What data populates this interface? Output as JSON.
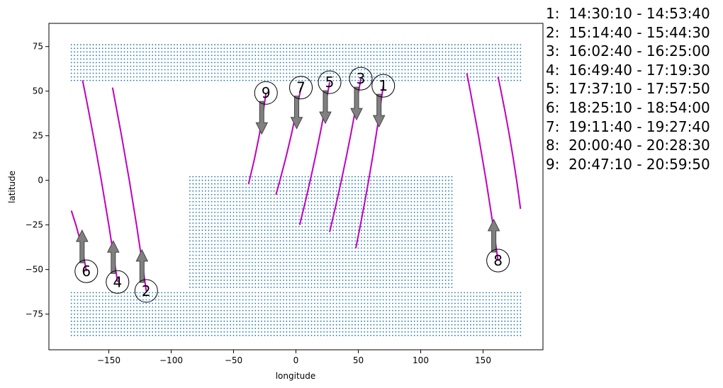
{
  "chart_data": {
    "type": "scatter",
    "xlabel": "longitude",
    "ylabel": "latitude",
    "xlim": [
      -198,
      198
    ],
    "ylim": [
      -95,
      88
    ],
    "xticks": [
      -150,
      -100,
      -50,
      0,
      50,
      100,
      150
    ],
    "yticks": [
      75,
      50,
      25,
      0,
      -25,
      -50,
      -75
    ],
    "grid": false,
    "colors": {
      "land_points": "#1f77b4",
      "tracks": "#c000c0",
      "arrows": "#808080"
    },
    "land_regions": [
      {
        "name": "north",
        "lon": [
          -180,
          180
        ],
        "lat": [
          56,
          77
        ]
      },
      {
        "name": "south",
        "lon": [
          -180,
          180
        ],
        "lat": [
          -87,
          -63
        ]
      },
      {
        "name": "middle",
        "lon": [
          -85,
          125
        ],
        "lat": [
          -60,
          3
        ]
      }
    ],
    "tracks": [
      {
        "id": "1",
        "label": "1",
        "time": "14:30:10 - 14:53:40",
        "start": [
          70,
          53
        ],
        "end": [
          48,
          -38
        ],
        "direction": "down"
      },
      {
        "id": "2",
        "label": "2",
        "time": "15:14:40 - 15:44:30",
        "start": [
          -120,
          -62
        ],
        "end": [
          -147,
          52
        ],
        "direction": "up"
      },
      {
        "id": "3",
        "label": "3",
        "time": "16:02:40 - 16:25:00",
        "start": [
          52,
          57
        ],
        "end": [
          27,
          -29
        ],
        "direction": "down"
      },
      {
        "id": "4",
        "label": "4",
        "time": "16:49:40 - 17:19:30",
        "start": [
          -143,
          -57
        ],
        "end": [
          -171,
          56
        ],
        "direction": "up"
      },
      {
        "id": "5",
        "label": "5",
        "time": "17:37:10 - 17:57:50",
        "start": [
          27,
          55
        ],
        "end": [
          3,
          -25
        ],
        "direction": "down"
      },
      {
        "id": "6",
        "label": "6",
        "time": "18:25:10 - 18:54:00",
        "start": [
          -168,
          -51
        ],
        "end": [
          -180,
          -17
        ],
        "direction": "up"
      },
      {
        "id": "7",
        "label": "7",
        "time": "19:11:40 - 19:27:40",
        "start": [
          4,
          52
        ],
        "end": [
          -16,
          -8
        ],
        "direction": "down"
      },
      {
        "id": "8",
        "label": "8",
        "time": "20:00:40 - 20:28:30",
        "start": [
          162,
          -45
        ],
        "end": [
          137,
          60
        ],
        "direction": "up"
      },
      {
        "id": "9",
        "label": "9",
        "time": "20:47:10 - 20:59:50",
        "start": [
          -24,
          49
        ],
        "end": [
          -38,
          -2
        ],
        "direction": "down"
      }
    ],
    "extra_track": {
      "start": [
        180,
        -16
      ],
      "end": [
        162,
        58
      ]
    },
    "legend_entries": [
      "1:  14:30:10 - 14:53:40",
      "2:  15:14:40 - 15:44:30",
      "3:  16:02:40 - 16:25:00",
      "4:  16:49:40 - 17:19:30",
      "5:  17:37:10 - 17:57:50",
      "6:  18:25:10 - 18:54:00",
      "7:  19:11:40 - 19:27:40",
      "8:  20:00:40 - 20:28:30",
      "9:  20:47:10 - 20:59:50"
    ]
  }
}
